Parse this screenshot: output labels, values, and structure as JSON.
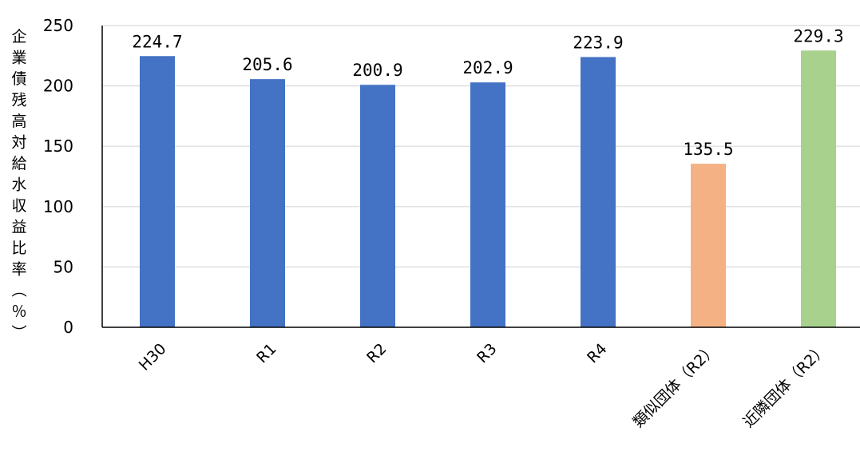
{
  "chart_data": {
    "type": "bar",
    "categories": [
      "H30",
      "R1",
      "R2",
      "R3",
      "R4",
      "類似団体（R2）",
      "近隣団体（R2）"
    ],
    "values": [
      224.7,
      205.6,
      200.9,
      202.9,
      223.9,
      135.5,
      229.3
    ],
    "data_labels": [
      "224.7",
      "205.6",
      "200.9",
      "202.9",
      "223.9",
      "135.5",
      "229.3"
    ],
    "bar_colors": [
      "#4472C4",
      "#4472C4",
      "#4472C4",
      "#4472C4",
      "#4472C4",
      "#F4B183",
      "#A9D18E"
    ],
    "ylabel": "企業債残高対給水収益比率（％）",
    "ylim": [
      0,
      250
    ],
    "yticks": [
      "0",
      "50",
      "100",
      "150",
      "200",
      "250"
    ],
    "grid": true,
    "gridline_color": "#D9D9D9"
  }
}
